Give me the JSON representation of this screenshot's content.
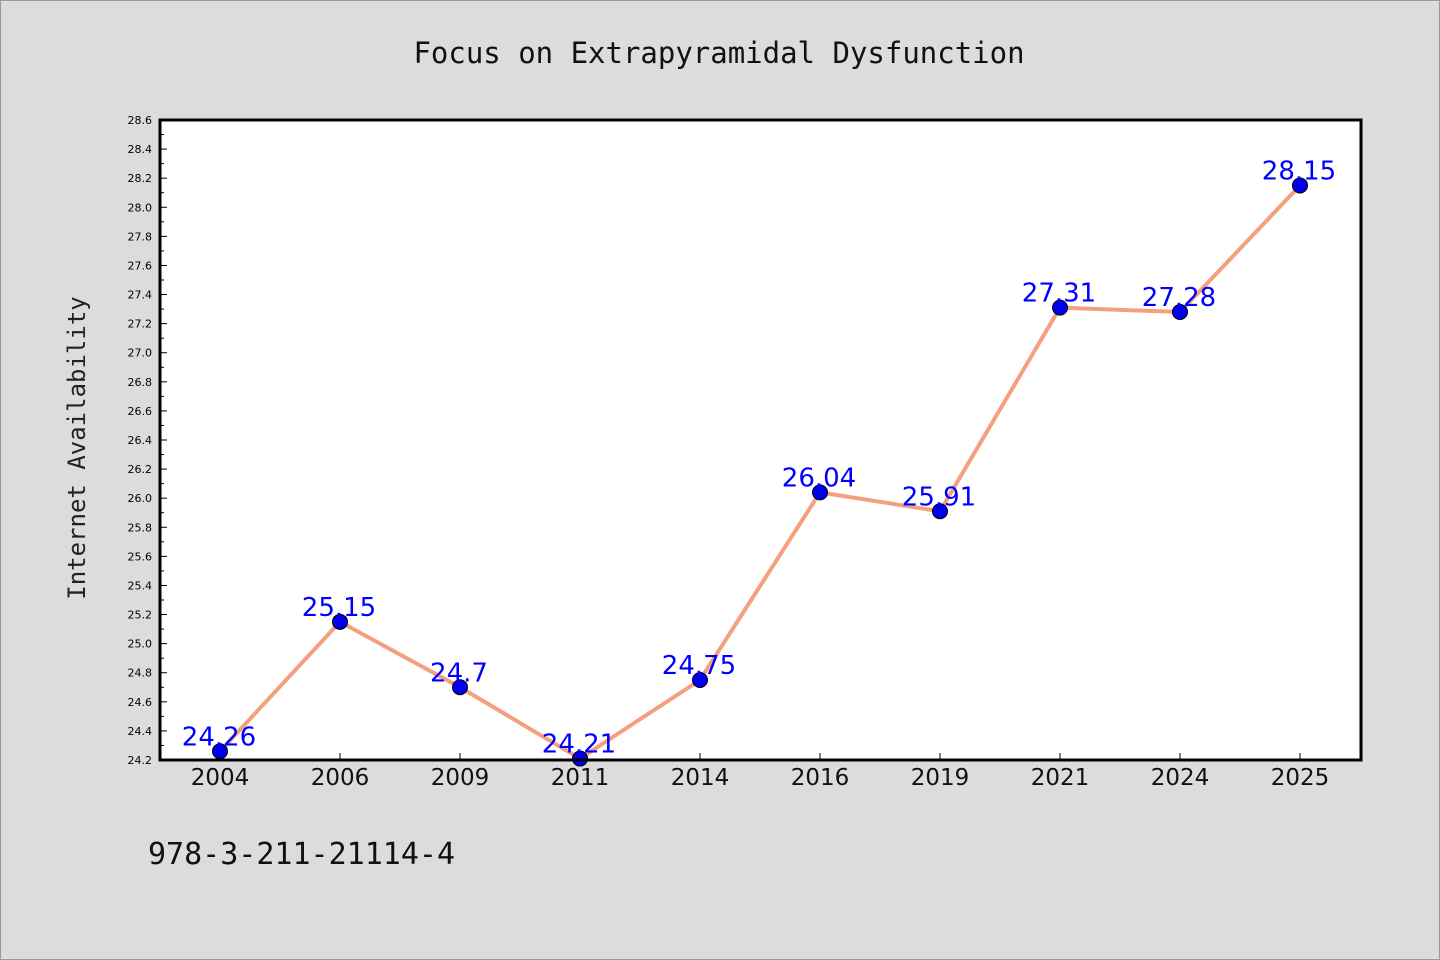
{
  "chart_data": {
    "type": "line",
    "title": "Focus on Extrapyramidal Dysfunction",
    "xlabel": "",
    "ylabel": "Internet Availability",
    "categories": [
      "2004",
      "2006",
      "2009",
      "2011",
      "2014",
      "2016",
      "2019",
      "2021",
      "2024",
      "2025"
    ],
    "series": [
      {
        "values": [
          24.26,
          25.15,
          24.7,
          24.21,
          24.75,
          26.04,
          25.91,
          27.31,
          27.28,
          28.15
        ]
      }
    ],
    "data_labels": [
      "24.26",
      "25.15",
      "24.7",
      "24.21",
      "24.75",
      "26.04",
      "25.91",
      "27.31",
      "27.28",
      "28.15"
    ],
    "ylim": [
      24.2,
      28.6
    ],
    "yticks": [
      "24.2",
      "24.4",
      "24.6",
      "24.8",
      "25.0",
      "25.2",
      "25.4",
      "25.6",
      "25.8",
      "26.0",
      "26.2",
      "26.4",
      "26.6",
      "26.8",
      "27.0",
      "27.2",
      "27.4",
      "27.6",
      "27.8",
      "28.0",
      "28.2",
      "28.4",
      "28.6"
    ],
    "grid": false,
    "line_color": "#f4a07e",
    "marker_color": "#0000ee",
    "label_color": "#0000ff"
  },
  "footer": {
    "code": "978-3-211-21114-4"
  }
}
